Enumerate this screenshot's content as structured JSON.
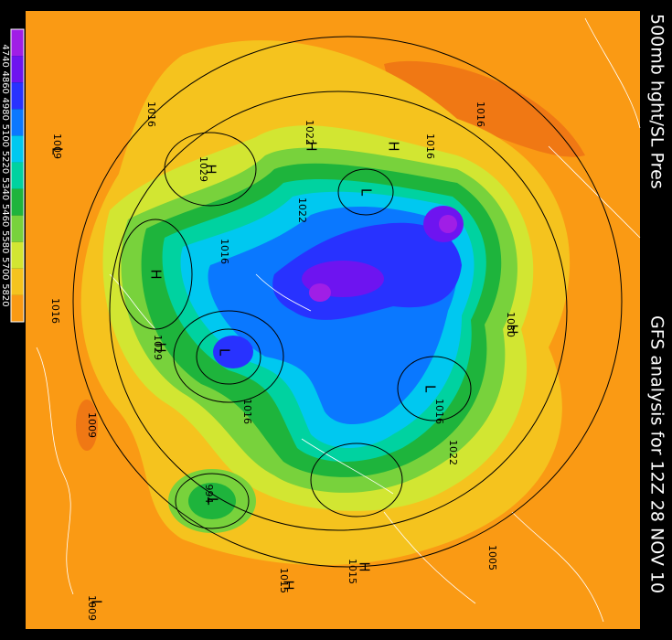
{
  "title": "500mb hght/SL Pres",
  "subtitle": "GFS analysis for 12Z 28 NOV 10",
  "colorbar": {
    "labels": [
      "4740",
      "4860",
      "4980",
      "5100",
      "5220",
      "5340",
      "5460",
      "5580",
      "5700",
      "5820"
    ],
    "colors": [
      "#a01ee6",
      "#6e14f0",
      "#2832ff",
      "#0a78ff",
      "#00c8f0",
      "#00d2a0",
      "#1eb43c",
      "#78d23c",
      "#d2e632",
      "#f5c31e",
      "#fa9a14"
    ]
  },
  "pressure_labels": [
    "1016",
    "1009",
    "1029",
    "1022",
    "1016",
    "1022",
    "1016",
    "1016",
    "1016",
    "1009",
    "1029",
    "1016",
    "1030",
    "1016",
    "1022",
    "994",
    "1015",
    "1015",
    "1005",
    "1009"
  ],
  "centers": [
    "H",
    "L",
    "H",
    "H",
    "L",
    "H",
    "L",
    "H",
    "L",
    "H",
    "L",
    "H",
    "H",
    "L"
  ]
}
